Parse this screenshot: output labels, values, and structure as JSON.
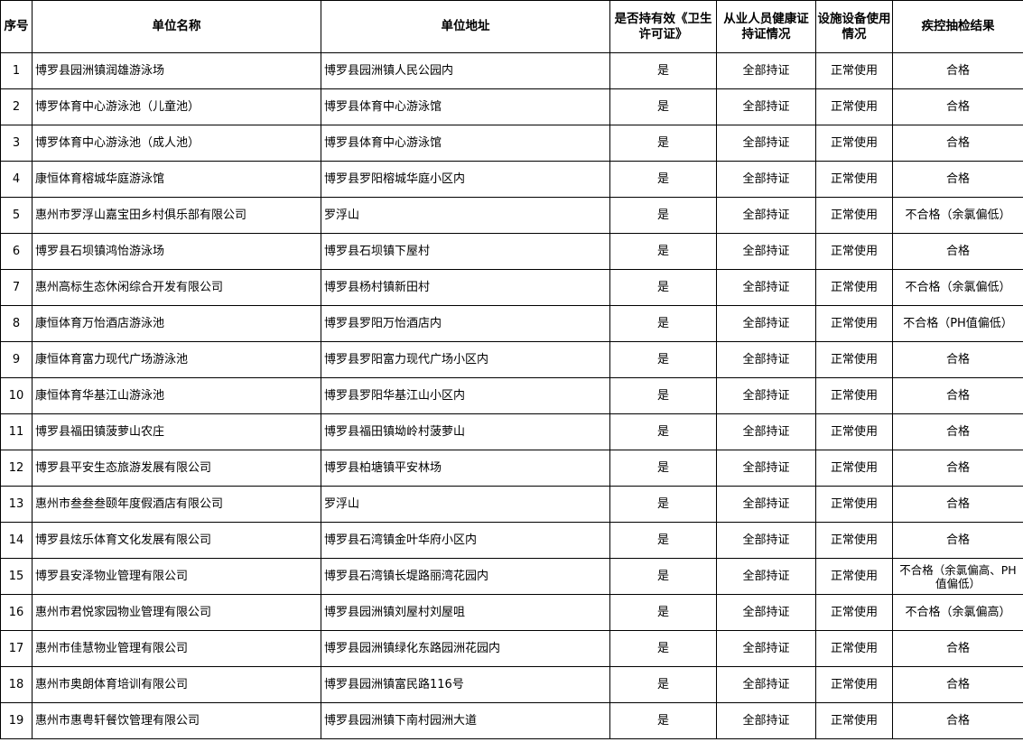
{
  "headers": [
    "序号",
    "单位名称",
    "单位地址",
    "是否持有效《卫生许可证》",
    "从业人员健康证持证情况",
    "设施设备使用情况",
    "疾控抽检结果"
  ],
  "rows": [
    [
      "1",
      "博罗县园洲镇润雄游泳场",
      "博罗县园洲镇人民公园内",
      "是",
      "全部持证",
      "正常使用",
      "合格"
    ],
    [
      "2",
      "博罗体育中心游泳池（儿童池）",
      "博罗县体育中心游泳馆",
      "是",
      "全部持证",
      "正常使用",
      "合格"
    ],
    [
      "3",
      "博罗体育中心游泳池（成人池）",
      "博罗县体育中心游泳馆",
      "是",
      "全部持证",
      "正常使用",
      "合格"
    ],
    [
      "4",
      "康恒体育榕城华庭游泳馆",
      "博罗县罗阳榕城华庭小区内",
      "是",
      "全部持证",
      "正常使用",
      "合格"
    ],
    [
      "5",
      "惠州市罗浮山嘉宝田乡村俱乐部有限公司",
      "罗浮山",
      "是",
      "全部持证",
      "正常使用",
      "不合格（余氯偏低）"
    ],
    [
      "6",
      "博罗县石坝镇鸿怡游泳场",
      "博罗县石坝镇下屋村",
      "是",
      "全部持证",
      "正常使用",
      "合格"
    ],
    [
      "7",
      "惠州高标生态休闲综合开发有限公司",
      "博罗县杨村镇新田村",
      "是",
      "全部持证",
      "正常使用",
      "不合格（余氯偏低）"
    ],
    [
      "8",
      "康恒体育万怡酒店游泳池",
      "博罗县罗阳万怡酒店内",
      "是",
      "全部持证",
      "正常使用",
      "不合格（PH值偏低）"
    ],
    [
      "9",
      "康恒体育富力现代广场游泳池",
      "博罗县罗阳富力现代广场小区内",
      "是",
      "全部持证",
      "正常使用",
      "合格"
    ],
    [
      "10",
      "康恒体育华基江山游泳池",
      "博罗县罗阳华基江山小区内",
      "是",
      "全部持证",
      "正常使用",
      "合格"
    ],
    [
      "11",
      "博罗县福田镇菠萝山农庄",
      "博罗县福田镇坳岭村菠萝山",
      "是",
      "全部持证",
      "正常使用",
      "合格"
    ],
    [
      "12",
      "博罗县平安生态旅游发展有限公司",
      "博罗县柏塘镇平安林场",
      "是",
      "全部持证",
      "正常使用",
      "合格"
    ],
    [
      "13",
      "惠州市叁叁叁颐年度假酒店有限公司",
      "罗浮山",
      "是",
      "全部持证",
      "正常使用",
      "合格"
    ],
    [
      "14",
      "博罗县炫乐体育文化发展有限公司",
      "博罗县石湾镇金叶华府小区内",
      "是",
      "全部持证",
      "正常使用",
      "合格"
    ],
    [
      "15",
      "博罗县安泽物业管理有限公司",
      "博罗县石湾镇长堤路丽湾花园内",
      "是",
      "全部持证",
      "正常使用",
      "不合格（余氯偏高、PH值偏低）"
    ],
    [
      "16",
      "惠州市君悦家园物业管理有限公司",
      "博罗县园洲镇刘屋村刘屋咀",
      "是",
      "全部持证",
      "正常使用",
      "不合格（余氯偏高）"
    ],
    [
      "17",
      "惠州市佳慧物业管理有限公司",
      "博罗县园洲镇绿化东路园洲花园内",
      "是",
      "全部持证",
      "正常使用",
      "合格"
    ],
    [
      "18",
      "惠州市奥朗体育培训有限公司",
      "博罗县园洲镇富民路116号",
      "是",
      "全部持证",
      "正常使用",
      "合格"
    ],
    [
      "19",
      "惠州市惠粤轩餐饮管理有限公司",
      "博罗县园洲镇下南村园洲大道",
      "是",
      "全部持证",
      "正常使用",
      "合格"
    ]
  ]
}
